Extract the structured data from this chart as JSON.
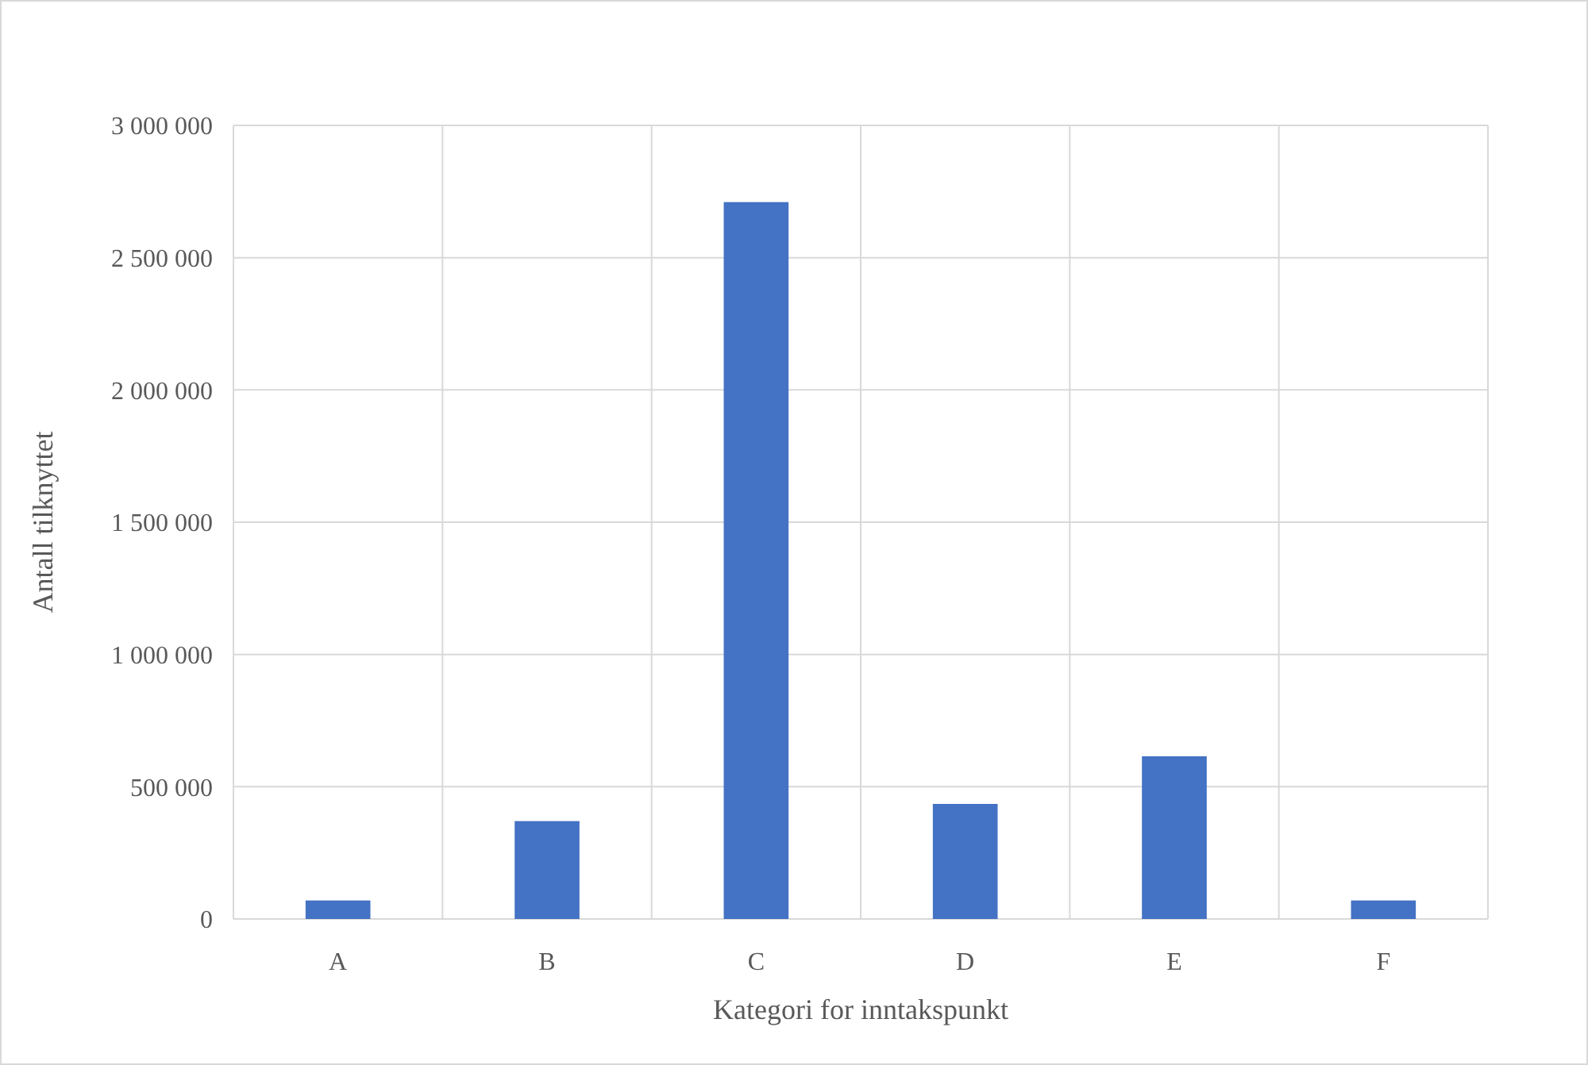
{
  "chart_data": {
    "type": "bar",
    "xlabel": "Kategori for inntakspunkt",
    "ylabel": "Antall tilknyttet",
    "categories": [
      "A",
      "B",
      "C",
      "D",
      "E",
      "F"
    ],
    "values": [
      70000,
      370000,
      2710000,
      435000,
      615000,
      70000
    ],
    "color": "#4472c4",
    "ylim": [
      0,
      3000000
    ],
    "yticks": [
      {
        "value": 0,
        "label": "0"
      },
      {
        "value": 500000,
        "label": "500 000"
      },
      {
        "value": 1000000,
        "label": "1 000 000"
      },
      {
        "value": 1500000,
        "label": "1 500 000"
      },
      {
        "value": 2000000,
        "label": "2 000 000"
      },
      {
        "value": 2500000,
        "label": "2 500 000"
      },
      {
        "value": 3000000,
        "label": "3 000 000"
      }
    ],
    "grid": true
  }
}
